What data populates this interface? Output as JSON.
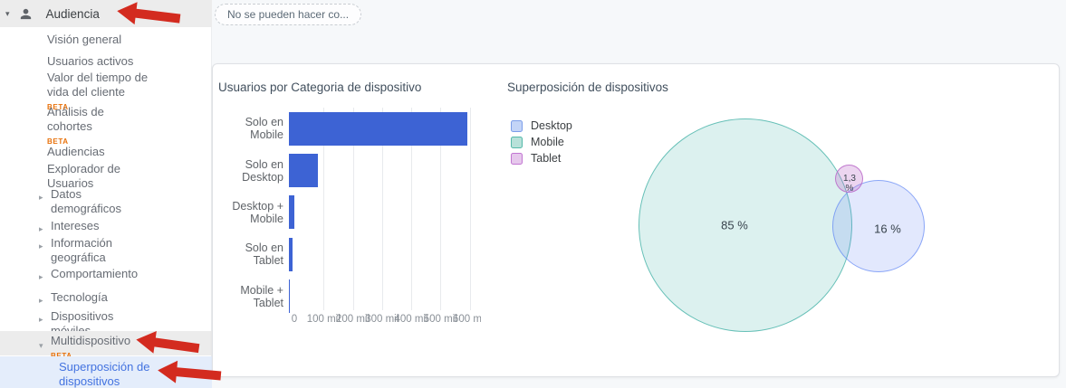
{
  "sidebar": {
    "header": {
      "label": "Audiencia"
    },
    "items": [
      {
        "label": "Visión general"
      },
      {
        "label": "Usuarios activos"
      },
      {
        "label": "Valor del tiempo de vida del cliente",
        "beta": "BETA"
      },
      {
        "label": "Análisis de cohortes",
        "beta": "BETA"
      },
      {
        "label": "Audiencias"
      },
      {
        "label": "Explorador de Usuarios"
      },
      {
        "label": "Datos demográficos"
      },
      {
        "label": "Intereses"
      },
      {
        "label": "Información geográfica"
      },
      {
        "label": "Comportamiento"
      },
      {
        "label": "Tecnología"
      },
      {
        "label": "Dispositivos móviles"
      },
      {
        "label": "Multidispositivo",
        "beta": "BETA"
      },
      {
        "label": "Superposición de dispositivos"
      }
    ]
  },
  "toolbar": {
    "tooltip_text": "No se pueden hacer co..."
  },
  "chart_data": [
    {
      "type": "bar",
      "orientation": "horizontal",
      "title": "Usuarios por Categoria de dispositivo",
      "categories": [
        "Solo en Mobile",
        "Solo en Desktop",
        "Desktop + Mobile",
        "Solo en Tablet",
        "Mobile + Tablet"
      ],
      "values": [
        610000,
        100000,
        20000,
        12000,
        3000
      ],
      "x_ticks": [
        "0",
        "100 mil",
        "200 mil",
        "300 mil",
        "400 mil",
        "500 mil",
        "600 mil"
      ],
      "tick_interval": 100000,
      "xlim": [
        0,
        620000
      ],
      "bar_color": "#3d63d4",
      "grid": true
    },
    {
      "type": "venn",
      "title": "Superposición de dispositivos",
      "legend": [
        "Desktop",
        "Mobile",
        "Tablet"
      ],
      "legend_position": "top-left",
      "sets": [
        {
          "name": "Mobile",
          "value": 85,
          "percent": "85 %"
        },
        {
          "name": "Desktop",
          "value": 16,
          "percent": "16 %"
        },
        {
          "name": "Tablet",
          "value": 1.3,
          "percent": "1,3 %"
        }
      ]
    }
  ],
  "annotations": {
    "red_arrow_targets": [
      "Audiencia",
      "Multidispositivo",
      "Superposición de dispositivos"
    ]
  }
}
